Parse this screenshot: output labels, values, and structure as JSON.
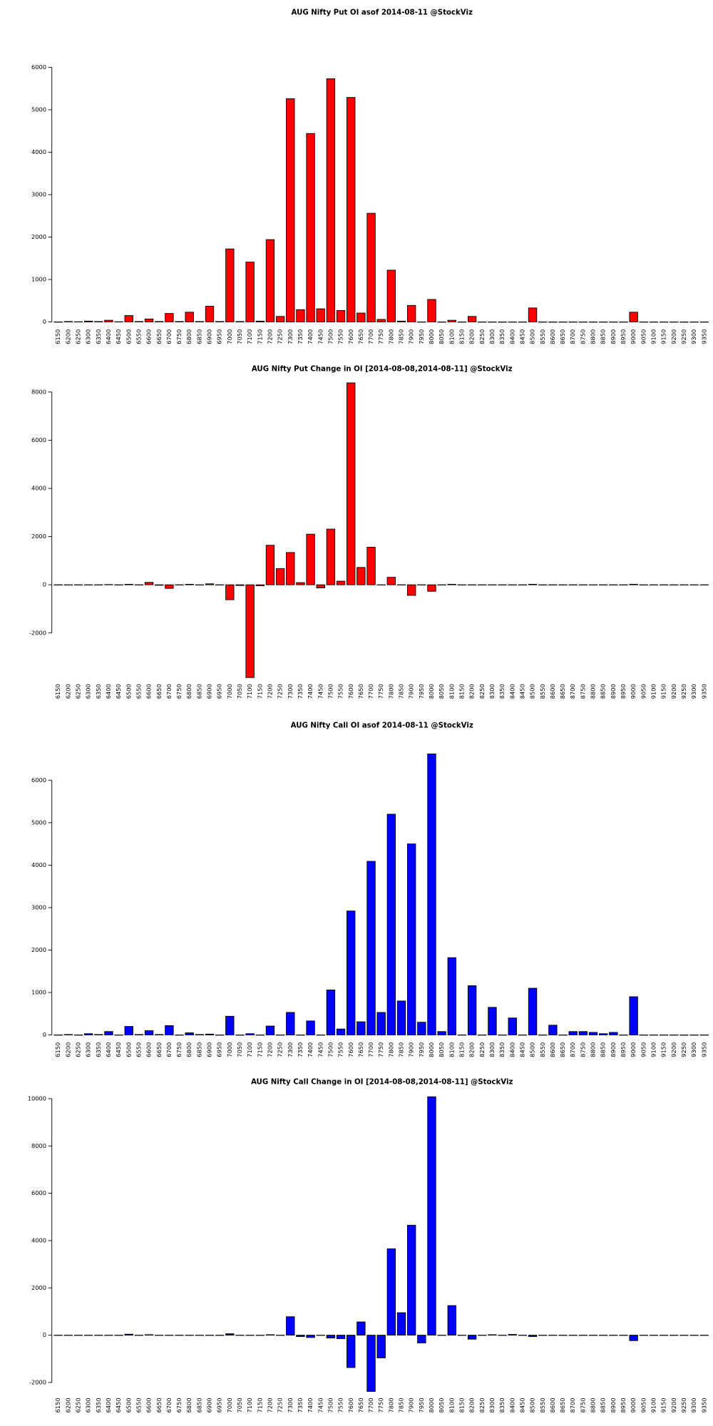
{
  "chart_data": [
    {
      "type": "bar",
      "title": "AUG Nifty Put OI asof 2014-08-11 @StockViz",
      "color": "#ff0000",
      "categories": [
        6150,
        6200,
        6250,
        6300,
        6350,
        6400,
        6450,
        6500,
        6550,
        6600,
        6650,
        6700,
        6750,
        6800,
        6850,
        6900,
        6950,
        7000,
        7050,
        7100,
        7150,
        7200,
        7250,
        7300,
        7350,
        7400,
        7450,
        7500,
        7550,
        7600,
        7650,
        7700,
        7750,
        7800,
        7850,
        7900,
        7950,
        8000,
        8050,
        8100,
        8150,
        8200,
        8250,
        8300,
        8350,
        8400,
        8450,
        8500,
        8550,
        8600,
        8650,
        8700,
        8750,
        8800,
        8850,
        8900,
        8950,
        9000,
        9050,
        9100,
        9150,
        9200,
        9250,
        9300,
        9350
      ],
      "values": [
        0,
        10,
        5,
        20,
        10,
        40,
        5,
        150,
        10,
        70,
        10,
        200,
        10,
        230,
        10,
        370,
        10,
        1720,
        10,
        1410,
        20,
        1940,
        130,
        5260,
        290,
        4440,
        310,
        5730,
        270,
        5290,
        210,
        2560,
        60,
        1220,
        20,
        390,
        0,
        530,
        0,
        40,
        0,
        130,
        0,
        0,
        0,
        0,
        0,
        330,
        0,
        0,
        0,
        0,
        0,
        0,
        0,
        0,
        0,
        230,
        0,
        0,
        0,
        0,
        0,
        0,
        0
      ],
      "ylim": [
        0,
        6000
      ],
      "yticks": [
        0,
        1000,
        2000,
        3000,
        4000,
        5000,
        6000
      ]
    },
    {
      "type": "bar",
      "title": "AUG Nifty Put Change in OI [2014-08-08,2014-08-11] @StockViz",
      "color": "#ff0000",
      "categories": [
        6150,
        6200,
        6250,
        6300,
        6350,
        6400,
        6450,
        6500,
        6550,
        6600,
        6650,
        6700,
        6750,
        6800,
        6850,
        6900,
        6950,
        7000,
        7050,
        7100,
        7150,
        7200,
        7250,
        7300,
        7350,
        7400,
        7450,
        7500,
        7550,
        7600,
        7650,
        7700,
        7750,
        7800,
        7850,
        7900,
        7950,
        8000,
        8050,
        8100,
        8150,
        8200,
        8250,
        8300,
        8350,
        8400,
        8450,
        8500,
        8550,
        8600,
        8650,
        8700,
        8750,
        8800,
        8850,
        8900,
        8950,
        9000,
        9050,
        9100,
        9150,
        9200,
        9250,
        9300,
        9350
      ],
      "values": [
        0,
        0,
        0,
        0,
        0,
        10,
        0,
        20,
        0,
        100,
        -20,
        -150,
        0,
        20,
        0,
        40,
        0,
        -620,
        -30,
        -3850,
        -40,
        1640,
        670,
        1340,
        90,
        2100,
        -130,
        2310,
        150,
        8380,
        720,
        1560,
        0,
        310,
        0,
        -440,
        0,
        -270,
        0,
        20,
        0,
        0,
        0,
        0,
        0,
        0,
        0,
        20,
        0,
        0,
        0,
        0,
        0,
        0,
        0,
        0,
        0,
        20,
        0,
        0,
        0,
        0,
        0,
        0,
        0
      ],
      "ylim": [
        -3850,
        8380
      ],
      "yticks": [
        -2000,
        0,
        2000,
        4000,
        6000,
        8000
      ]
    },
    {
      "type": "bar",
      "title": "AUG Nifty Call OI asof 2014-08-11 @StockViz",
      "color": "#0000ff",
      "categories": [
        6150,
        6200,
        6250,
        6300,
        6350,
        6400,
        6450,
        6500,
        6550,
        6600,
        6650,
        6700,
        6750,
        6800,
        6850,
        6900,
        6950,
        7000,
        7050,
        7100,
        7150,
        7200,
        7250,
        7300,
        7350,
        7400,
        7450,
        7500,
        7550,
        7600,
        7650,
        7700,
        7750,
        7800,
        7850,
        7900,
        7950,
        8000,
        8050,
        8100,
        8150,
        8200,
        8250,
        8300,
        8350,
        8400,
        8450,
        8500,
        8550,
        8600,
        8650,
        8700,
        8750,
        8800,
        8850,
        8900,
        8950,
        9000,
        9050,
        9100,
        9150,
        9200,
        9250,
        9300,
        9350
      ],
      "values": [
        0,
        10,
        0,
        30,
        10,
        80,
        0,
        200,
        10,
        100,
        10,
        220,
        0,
        50,
        10,
        20,
        0,
        440,
        0,
        30,
        0,
        210,
        0,
        530,
        0,
        330,
        0,
        1060,
        140,
        2920,
        310,
        4090,
        530,
        5200,
        800,
        4500,
        300,
        6620,
        80,
        1820,
        0,
        1160,
        0,
        650,
        0,
        400,
        0,
        1100,
        0,
        230,
        0,
        80,
        80,
        60,
        30,
        60,
        0,
        900,
        0,
        0,
        0,
        0,
        0,
        0,
        0
      ],
      "ylim": [
        0,
        6620
      ],
      "yticks": [
        0,
        1000,
        2000,
        3000,
        4000,
        5000,
        6000
      ]
    },
    {
      "type": "bar",
      "title": "AUG Nifty Call Change in OI [2014-08-08,2014-08-11] @StockViz",
      "color": "#0000ff",
      "categories": [
        6150,
        6200,
        6250,
        6300,
        6350,
        6400,
        6450,
        6500,
        6550,
        6600,
        6650,
        6700,
        6750,
        6800,
        6850,
        6900,
        6950,
        7000,
        7050,
        7100,
        7150,
        7200,
        7250,
        7300,
        7350,
        7400,
        7450,
        7500,
        7550,
        7600,
        7650,
        7700,
        7750,
        7800,
        7850,
        7900,
        7950,
        8000,
        8050,
        8100,
        8150,
        8200,
        8250,
        8300,
        8350,
        8400,
        8450,
        8500,
        8550,
        8600,
        8650,
        8700,
        8750,
        8800,
        8850,
        8900,
        8950,
        9000,
        9050,
        9100,
        9150,
        9200,
        9250,
        9300,
        9350
      ],
      "values": [
        0,
        0,
        0,
        0,
        0,
        0,
        0,
        40,
        0,
        20,
        0,
        0,
        0,
        0,
        0,
        0,
        0,
        60,
        0,
        0,
        0,
        20,
        0,
        780,
        -60,
        -100,
        0,
        -120,
        -150,
        -1370,
        560,
        -2380,
        -960,
        3650,
        950,
        4650,
        -330,
        10080,
        0,
        1250,
        0,
        -170,
        0,
        20,
        0,
        30,
        0,
        -60,
        0,
        0,
        0,
        0,
        0,
        0,
        0,
        0,
        0,
        -230,
        0,
        0,
        0,
        0,
        0,
        0,
        0
      ],
      "ylim": [
        -2380,
        10080
      ],
      "yticks": [
        -2000,
        0,
        2000,
        4000,
        6000,
        8000,
        10000
      ]
    }
  ]
}
